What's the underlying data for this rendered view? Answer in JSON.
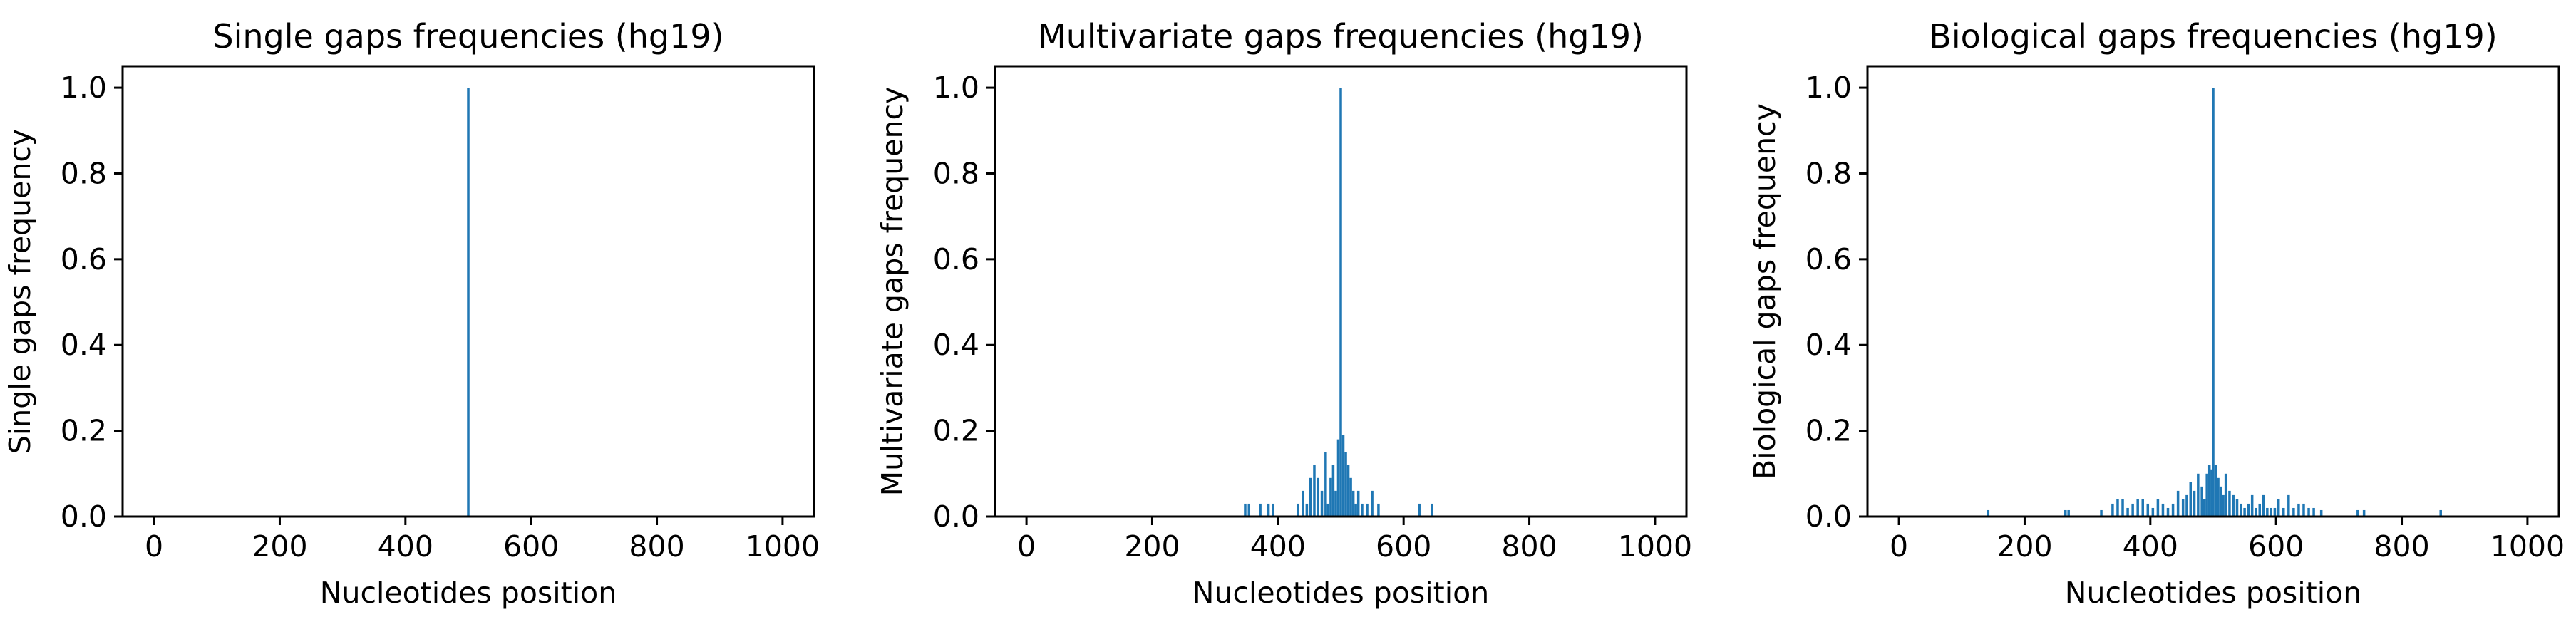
{
  "chart_data": [
    {
      "type": "bar",
      "title": "Single gaps frequencies (hg19)",
      "xlabel": "Nucleotides position",
      "ylabel": "Single gaps frequency",
      "xlim": [
        -50,
        1050
      ],
      "ylim": [
        0,
        1.05
      ],
      "xticks": [
        "0",
        "200",
        "400",
        "600",
        "800",
        "1000"
      ],
      "yticks": [
        "0.0",
        "0.2",
        "0.4",
        "0.6",
        "0.8",
        "1.0"
      ],
      "bar_color": "#1f77b4",
      "x": [
        500
      ],
      "values": [
        1.0
      ]
    },
    {
      "type": "bar",
      "title": "Multivariate gaps frequencies (hg19)",
      "xlabel": "Nucleotides position",
      "ylabel": "Multivariate gaps frequency",
      "xlim": [
        -50,
        1050
      ],
      "ylim": [
        0,
        1.05
      ],
      "xticks": [
        "0",
        "200",
        "400",
        "600",
        "800",
        "1000"
      ],
      "yticks": [
        "0.0",
        "0.2",
        "0.4",
        "0.6",
        "0.8",
        "1.0"
      ],
      "bar_color": "#1f77b4",
      "x": [
        348,
        354,
        372,
        385,
        392,
        432,
        440,
        446,
        452,
        458,
        464,
        470,
        476,
        480,
        484,
        488,
        492,
        496,
        500,
        504,
        508,
        512,
        516,
        520,
        524,
        528,
        534,
        542,
        550,
        560,
        625,
        645
      ],
      "values": [
        0.03,
        0.03,
        0.03,
        0.03,
        0.03,
        0.03,
        0.06,
        0.03,
        0.09,
        0.12,
        0.09,
        0.06,
        0.15,
        0.03,
        0.09,
        0.12,
        0.06,
        0.18,
        1.0,
        0.19,
        0.15,
        0.12,
        0.09,
        0.06,
        0.03,
        0.06,
        0.03,
        0.03,
        0.06,
        0.03,
        0.03,
        0.03
      ]
    },
    {
      "type": "bar",
      "title": "Biological gaps frequencies (hg19)",
      "xlabel": "Nucleotides position",
      "ylabel": "Biological gaps frequency",
      "xlim": [
        -50,
        1050
      ],
      "ylim": [
        0,
        1.05
      ],
      "xticks": [
        "0",
        "200",
        "400",
        "600",
        "800",
        "1000"
      ],
      "yticks": [
        "0.0",
        "0.2",
        "0.4",
        "0.6",
        "0.8",
        "1.0"
      ],
      "bar_color": "#1f77b4",
      "x": [
        142,
        265,
        270,
        322,
        340,
        348,
        356,
        364,
        372,
        380,
        388,
        396,
        404,
        412,
        420,
        428,
        436,
        444,
        452,
        458,
        464,
        470,
        476,
        482,
        486,
        490,
        494,
        498,
        500,
        504,
        508,
        512,
        516,
        520,
        526,
        532,
        538,
        544,
        550,
        556,
        562,
        568,
        574,
        580,
        586,
        592,
        598,
        604,
        612,
        620,
        628,
        636,
        644,
        652,
        660,
        672,
        730,
        740,
        862
      ],
      "values": [
        0.015,
        0.015,
        0.015,
        0.015,
        0.03,
        0.04,
        0.04,
        0.02,
        0.03,
        0.04,
        0.04,
        0.03,
        0.02,
        0.04,
        0.03,
        0.02,
        0.03,
        0.06,
        0.04,
        0.05,
        0.08,
        0.06,
        0.1,
        0.07,
        0.04,
        0.1,
        0.12,
        0.11,
        1.0,
        0.12,
        0.09,
        0.07,
        0.05,
        0.1,
        0.06,
        0.05,
        0.04,
        0.03,
        0.02,
        0.03,
        0.05,
        0.02,
        0.03,
        0.05,
        0.02,
        0.02,
        0.02,
        0.04,
        0.02,
        0.05,
        0.02,
        0.03,
        0.03,
        0.02,
        0.02,
        0.015,
        0.015,
        0.015,
        0.015
      ]
    }
  ]
}
